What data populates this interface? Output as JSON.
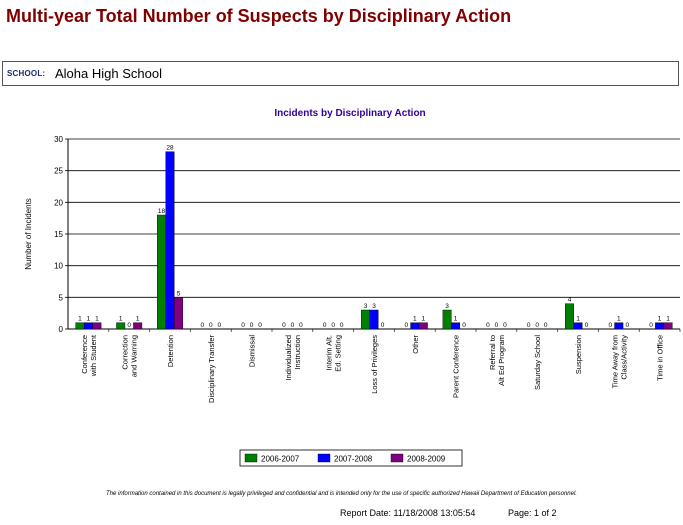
{
  "report": {
    "title": "Multi-year Total Number of Suspects by Disciplinary Action",
    "school_label": "SCHOOL:",
    "school_name": "Aloha High School",
    "footer_note": "The information contained in this document is legally privileged and confidential and is intended only for the use of specific authorized Hawaii Department of Education personnel.",
    "report_date": "Report Date:   11/18/2008 13:05:54",
    "page": "Page:  1 of 2"
  },
  "chart_data": {
    "type": "bar",
    "title": "Incidents by Disciplinary Action",
    "xlabel": "",
    "ylabel": "Number of Incidents",
    "ylim": [
      0,
      30
    ],
    "yticks": [
      0,
      5,
      10,
      15,
      20,
      25,
      30
    ],
    "grid": true,
    "legend_position": "bottom-center",
    "categories": [
      [
        "Conference",
        "with Student"
      ],
      [
        "Correction",
        "and Warning"
      ],
      [
        "Detention"
      ],
      [
        "Disciplinary Transfer"
      ],
      [
        "Dismissal"
      ],
      [
        "Individualized",
        "Instruction"
      ],
      [
        "Interim Alt.",
        "Ed. Setting"
      ],
      [
        "Loss of Privileges"
      ],
      [
        "Other"
      ],
      [
        "Parent Conference"
      ],
      [
        "Referral to",
        "Alt Ed Program"
      ],
      [
        "Saturday School"
      ],
      [
        "Suspension"
      ],
      [
        "Time Away from",
        "Class/Activity"
      ],
      [
        "Time in Office"
      ]
    ],
    "series": [
      {
        "name": "2006-2007",
        "color": "#008000",
        "values": [
          1,
          1,
          18,
          0,
          0,
          0,
          0,
          3,
          0,
          3,
          0,
          0,
          4,
          0,
          0
        ]
      },
      {
        "name": "2007-2008",
        "color": "#0000ff",
        "values": [
          1,
          0,
          28,
          0,
          0,
          0,
          0,
          3,
          1,
          1,
          0,
          0,
          1,
          1,
          1
        ]
      },
      {
        "name": "2008-2009",
        "color": "#800080",
        "values": [
          1,
          1,
          5,
          0,
          0,
          0,
          0,
          0,
          1,
          0,
          0,
          0,
          0,
          0,
          1
        ]
      }
    ]
  }
}
